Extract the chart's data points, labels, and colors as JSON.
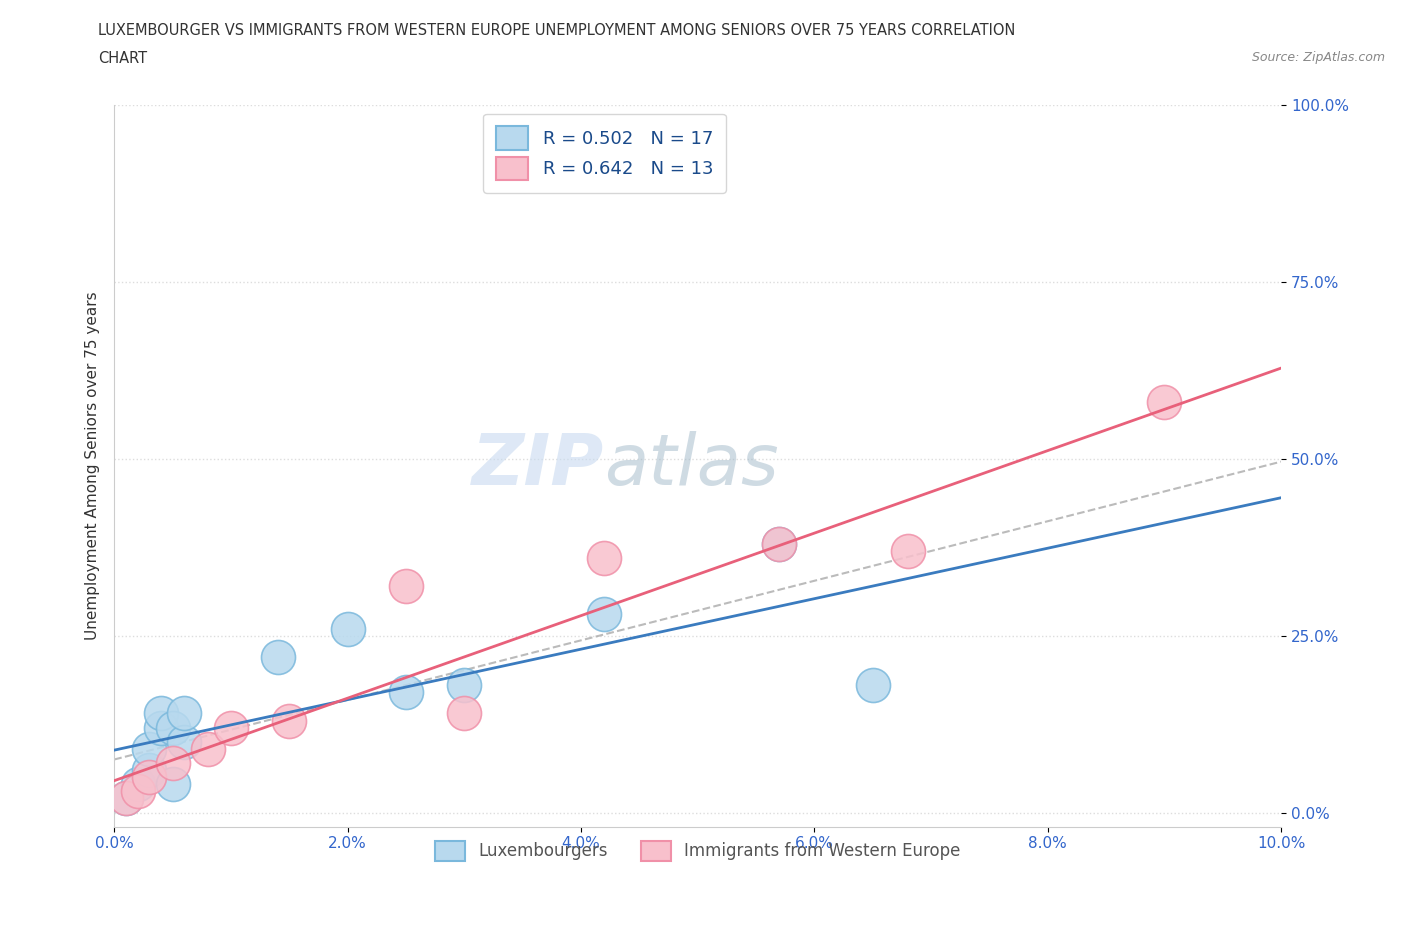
{
  "title_line1": "LUXEMBOURGER VS IMMIGRANTS FROM WESTERN EUROPE UNEMPLOYMENT AMONG SENIORS OVER 75 YEARS CORRELATION",
  "title_line2": "CHART",
  "source": "Source: ZipAtlas.com",
  "ylabel": "Unemployment Among Seniors over 75 years",
  "xlim": [
    0.0,
    0.1
  ],
  "ylim": [
    -0.02,
    0.82
  ],
  "xtick_labels": [
    "0.0%",
    "2.0%",
    "4.0%",
    "6.0%",
    "8.0%",
    "10.0%"
  ],
  "xtick_vals": [
    0.0,
    0.02,
    0.04,
    0.06,
    0.08,
    0.1
  ],
  "ytick_labels": [
    "0.0%",
    "25.0%",
    "50.0%",
    "75.0%",
    "100.0%"
  ],
  "ytick_vals": [
    0.0,
    0.25,
    0.5,
    0.75,
    1.0
  ],
  "lux_color": "#7ab8dc",
  "lux_color_fill": "#b8d9ee",
  "imm_color": "#f090a8",
  "imm_color_fill": "#f8c0cc",
  "trend_lux_color": "#3a7bbf",
  "trend_imm_color": "#e8607a",
  "trend_dashed_color": "#aaaaaa",
  "R_lux": 0.502,
  "N_lux": 17,
  "R_imm": 0.642,
  "N_imm": 13,
  "lux_x": [
    0.001,
    0.002,
    0.003,
    0.003,
    0.004,
    0.004,
    0.005,
    0.005,
    0.006,
    0.006,
    0.014,
    0.02,
    0.025,
    0.03,
    0.042,
    0.057,
    0.065
  ],
  "lux_y": [
    0.02,
    0.04,
    0.06,
    0.09,
    0.12,
    0.14,
    0.12,
    0.04,
    0.1,
    0.14,
    0.22,
    0.26,
    0.17,
    0.18,
    0.28,
    0.38,
    0.18
  ],
  "imm_x": [
    0.001,
    0.002,
    0.003,
    0.005,
    0.008,
    0.01,
    0.015,
    0.025,
    0.03,
    0.042,
    0.057,
    0.068,
    0.09
  ],
  "imm_y": [
    0.02,
    0.03,
    0.05,
    0.07,
    0.09,
    0.12,
    0.13,
    0.32,
    0.14,
    0.36,
    0.38,
    0.37,
    0.58
  ],
  "watermark_zip": "ZIP",
  "watermark_atlas": "atlas",
  "background_color": "#ffffff",
  "grid_color": "#dddddd",
  "legend_label_color": "#1a4a8a",
  "tick_color": "#3366cc",
  "bottom_legend_color": "#555555"
}
